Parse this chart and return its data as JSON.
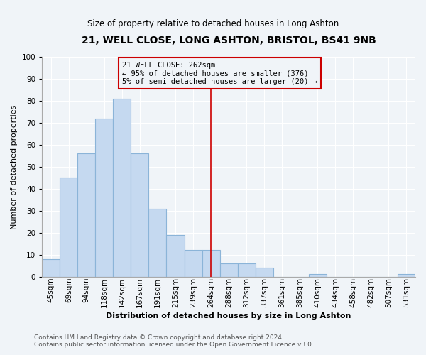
{
  "title": "21, WELL CLOSE, LONG ASHTON, BRISTOL, BS41 9NB",
  "subtitle": "Size of property relative to detached houses in Long Ashton",
  "xlabel": "Distribution of detached houses by size in Long Ashton",
  "ylabel": "Number of detached properties",
  "footnote1": "Contains HM Land Registry data © Crown copyright and database right 2024.",
  "footnote2": "Contains public sector information licensed under the Open Government Licence v3.0.",
  "bar_labels": [
    "45sqm",
    "69sqm",
    "94sqm",
    "118sqm",
    "142sqm",
    "167sqm",
    "191sqm",
    "215sqm",
    "239sqm",
    "264sqm",
    "288sqm",
    "312sqm",
    "337sqm",
    "361sqm",
    "385sqm",
    "410sqm",
    "434sqm",
    "458sqm",
    "482sqm",
    "507sqm",
    "531sqm"
  ],
  "bar_values": [
    8,
    45,
    56,
    72,
    81,
    56,
    31,
    19,
    12,
    12,
    6,
    6,
    4,
    0,
    0,
    1,
    0,
    0,
    0,
    0,
    1
  ],
  "bar_color": "#c5d9f0",
  "bar_edge_color": "#8bb4d8",
  "annotation_line1": "21 WELL CLOSE: 262sqm",
  "annotation_line2": "← 95% of detached houses are smaller (376)",
  "annotation_line3": "5% of semi-detached houses are larger (20) →",
  "vline_x_index": 9,
  "vline_color": "#cc0000",
  "annotation_box_color": "#cc0000",
  "ylim": [
    0,
    100
  ],
  "yticks": [
    0,
    10,
    20,
    30,
    40,
    50,
    60,
    70,
    80,
    90,
    100
  ],
  "bg_color": "#f0f4f8",
  "grid_color": "#ffffff",
  "title_fontsize": 10,
  "subtitle_fontsize": 8.5,
  "axis_label_fontsize": 8,
  "tick_fontsize": 7.5,
  "annotation_fontsize": 7.5,
  "footnote_fontsize": 6.5
}
